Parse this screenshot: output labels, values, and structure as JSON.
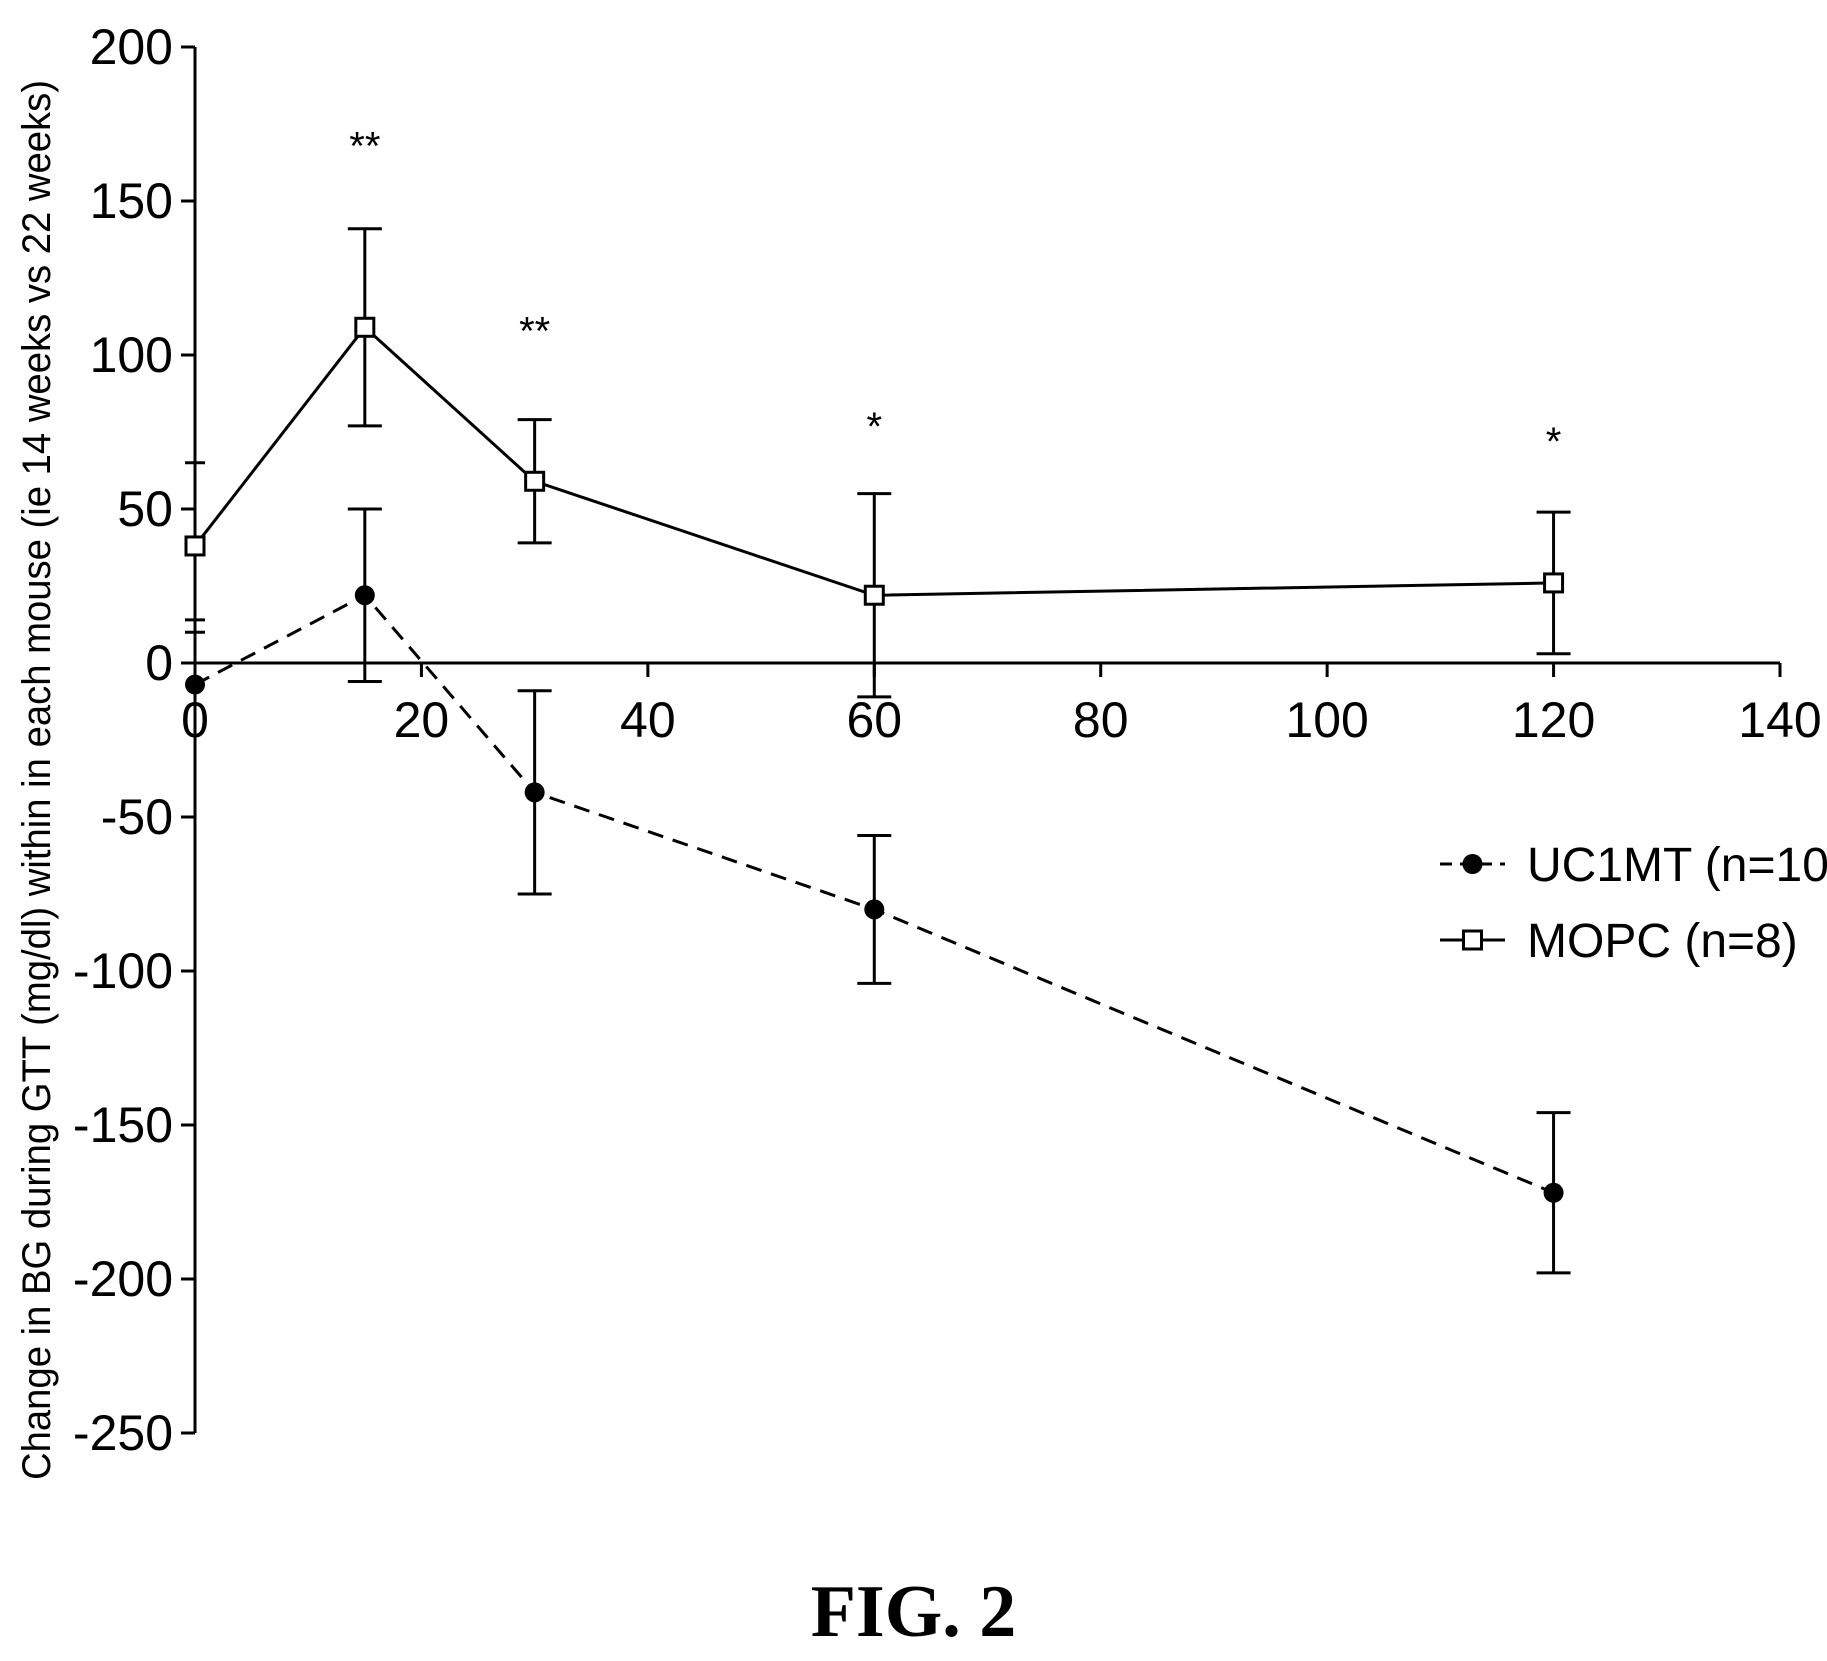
{
  "chart_data": {
    "type": "line",
    "title": "",
    "xlabel": "",
    "ylabel": "Change in BG during GTT (mg/dl) within in each mouse (ie 14 weeks vs 22 weeks)",
    "xlim": [
      0,
      140
    ],
    "ylim": [
      -250,
      200
    ],
    "x_ticks": [
      0,
      20,
      40,
      60,
      80,
      100,
      120,
      140
    ],
    "y_ticks": [
      200,
      150,
      100,
      50,
      0,
      -50,
      -100,
      -150,
      -200,
      -250
    ],
    "x_tick_labels": [
      "0",
      "20",
      "40",
      "60",
      "80",
      "100",
      "120",
      "140"
    ],
    "y_tick_labels": [
      "200",
      "150",
      "100",
      "50",
      "0",
      "-50",
      "-100",
      "-150",
      "-200",
      "-250"
    ],
    "grid": false,
    "legend_position": "right",
    "series": [
      {
        "name": "UC1MT (n=10)",
        "marker": "filled-circle",
        "line_style": "dashed",
        "x": [
          0,
          15,
          30,
          60,
          120
        ],
        "y": [
          -7,
          22,
          -42,
          -80,
          -172
        ],
        "err": [
          null,
          28,
          33,
          24,
          26
        ]
      },
      {
        "name": "MOPC (n=8)",
        "marker": "open-square",
        "line_style": "solid",
        "x": [
          0,
          15,
          30,
          60,
          120
        ],
        "y": [
          38,
          109,
          59,
          22,
          26
        ],
        "err": [
          null,
          32,
          20,
          33,
          23
        ]
      }
    ],
    "annotations": [
      {
        "text": "**",
        "x": 15,
        "y": 168
      },
      {
        "text": "**",
        "x": 30,
        "y": 108
      },
      {
        "text": "*",
        "x": 60,
        "y": 77
      },
      {
        "text": "*",
        "x": 120,
        "y": 72
      }
    ],
    "axis_stub_marks_y": [
      65,
      14,
      10
    ]
  },
  "caption": "FIG. 2"
}
